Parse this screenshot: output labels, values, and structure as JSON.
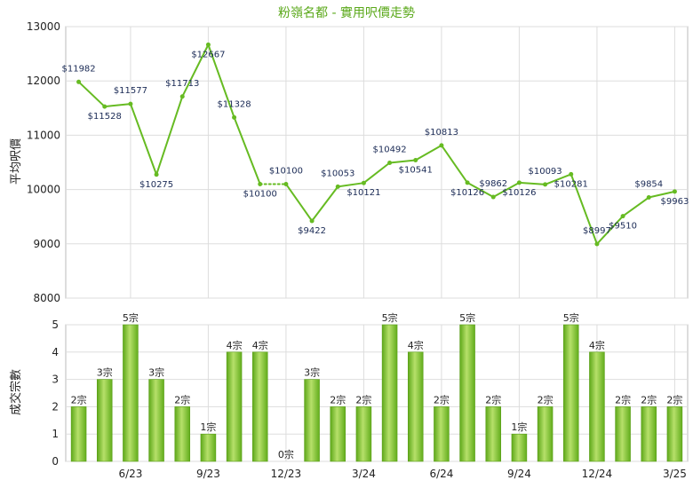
{
  "chart_data": [
    {
      "type": "line",
      "title": "粉嶺名都 - 實用呎價走勢",
      "ylabel": "平均呎價",
      "ylim": [
        8000,
        13000
      ],
      "yticks": [
        8000,
        9000,
        10000,
        11000,
        12000,
        13000
      ],
      "color": "#66bb22",
      "series": [
        {
          "values": [
            11982,
            11528,
            11577,
            10275,
            11713,
            12667,
            11328,
            10100,
            10100,
            9422,
            10053,
            10121,
            10492,
            10541,
            10813,
            10126,
            9862,
            10126,
            10093,
            10281,
            8997,
            9510,
            9854,
            9963
          ],
          "labels": [
            "$11982",
            "$11528",
            "$11577",
            "$10275",
            "$11713",
            "$12667",
            "$11328",
            "$10100",
            "$10100",
            "$9422",
            "$10053",
            "$10121",
            "$10492",
            "$10541",
            "$10813",
            "$10126",
            "$9862",
            "$10126",
            "$10093",
            "$10281",
            "$8997",
            "$9510",
            "$9854",
            "$9963"
          ]
        }
      ]
    },
    {
      "type": "bar",
      "ylabel": "成交宗數",
      "ylim": [
        0,
        5
      ],
      "yticks": [
        0,
        1,
        2,
        3,
        4,
        5
      ],
      "color": "#7cc52a",
      "values": [
        2,
        3,
        5,
        3,
        2,
        1,
        4,
        4,
        0,
        3,
        2,
        2,
        5,
        4,
        2,
        5,
        2,
        1,
        2,
        5,
        4,
        2,
        2,
        2
      ],
      "labels": [
        "2宗",
        "3宗",
        "5宗",
        "3宗",
        "2宗",
        "1宗",
        "4宗",
        "4宗",
        "0宗",
        "3宗",
        "2宗",
        "2宗",
        "5宗",
        "4宗",
        "2宗",
        "5宗",
        "2宗",
        "1宗",
        "2宗",
        "5宗",
        "4宗",
        "2宗",
        "2宗",
        "2宗"
      ],
      "xticks": [
        {
          "index": 2,
          "label": "6/23"
        },
        {
          "index": 5,
          "label": "9/23"
        },
        {
          "index": 8,
          "label": "12/23"
        },
        {
          "index": 11,
          "label": "3/24"
        },
        {
          "index": 14,
          "label": "6/24"
        },
        {
          "index": 17,
          "label": "9/24"
        },
        {
          "index": 20,
          "label": "12/24"
        },
        {
          "index": 23,
          "label": "3/25"
        }
      ]
    }
  ]
}
